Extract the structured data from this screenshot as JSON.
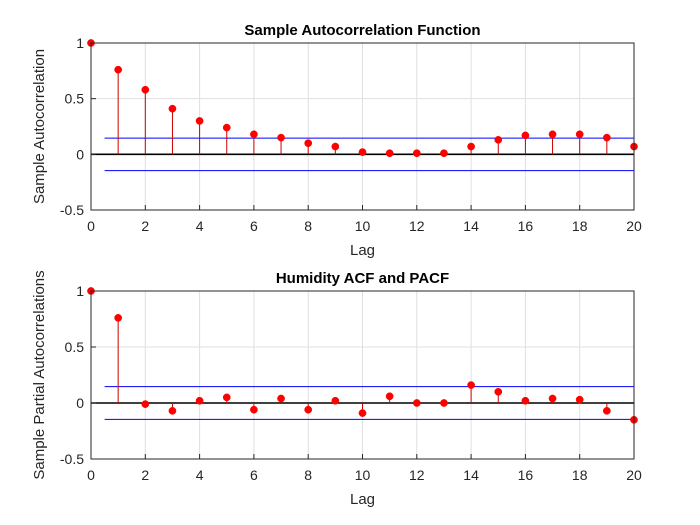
{
  "chart_data": [
    {
      "type": "stem",
      "title": "Sample Autocorrelation Function",
      "xlabel": "Lag",
      "ylabel": "Sample Autocorrelation",
      "xlim": [
        0,
        20
      ],
      "ylim": [
        -0.5,
        1
      ],
      "xticks": [
        "0",
        "2",
        "4",
        "6",
        "8",
        "10",
        "12",
        "14",
        "16",
        "18",
        "20"
      ],
      "yticks": [
        "-0.5",
        "0",
        "0.5",
        "1"
      ],
      "grid": true,
      "lags": [
        0,
        1,
        2,
        3,
        4,
        5,
        6,
        7,
        8,
        9,
        10,
        11,
        12,
        13,
        14,
        15,
        16,
        17,
        18,
        19,
        20
      ],
      "values": [
        1.0,
        0.76,
        0.58,
        0.41,
        0.3,
        0.24,
        0.18,
        0.15,
        0.1,
        0.07,
        0.02,
        0.01,
        0.01,
        0.01,
        0.07,
        0.13,
        0.17,
        0.18,
        0.18,
        0.15,
        0.07
      ],
      "confidence_bounds": [
        0.146,
        -0.146
      ],
      "colors": {
        "stem": "#cc0000",
        "marker": "#ff0000",
        "bounds": "#0000ff",
        "zero": "#000000"
      }
    },
    {
      "type": "stem",
      "title": "Humidity ACF and PACF",
      "xlabel": "Lag",
      "ylabel": "Sample Partial Autocorrelations",
      "xlim": [
        0,
        20
      ],
      "ylim": [
        -0.5,
        1
      ],
      "xticks": [
        "0",
        "2",
        "4",
        "6",
        "8",
        "10",
        "12",
        "14",
        "16",
        "18",
        "20"
      ],
      "yticks": [
        "-0.5",
        "0",
        "0.5",
        "1"
      ],
      "grid": true,
      "lags": [
        0,
        1,
        2,
        3,
        4,
        5,
        6,
        7,
        8,
        9,
        10,
        11,
        12,
        13,
        14,
        15,
        16,
        17,
        18,
        19,
        20
      ],
      "values": [
        1.0,
        0.76,
        -0.01,
        -0.07,
        0.02,
        0.05,
        -0.06,
        0.04,
        -0.06,
        0.02,
        -0.09,
        0.06,
        0.0,
        0.0,
        0.16,
        0.1,
        0.02,
        0.04,
        0.03,
        -0.07,
        -0.15
      ],
      "confidence_bounds": [
        0.146,
        -0.146
      ],
      "colors": {
        "stem": "#cc0000",
        "marker": "#ff0000",
        "bounds": "#0000ff",
        "zero": "#000000"
      }
    }
  ]
}
